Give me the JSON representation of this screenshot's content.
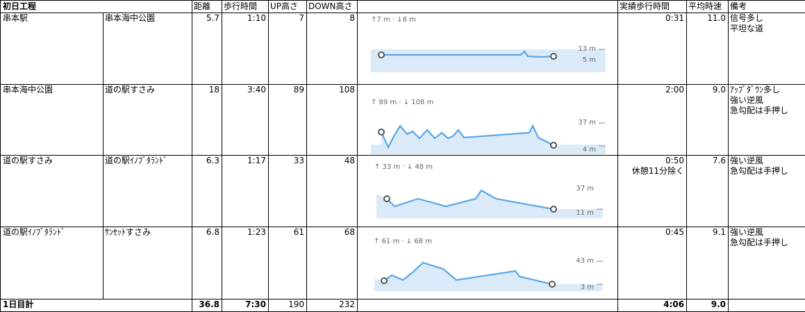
{
  "table": {
    "header": [
      "初日工程",
      "距離",
      "歩行時間",
      "UP高さ",
      "DOWN高さ",
      "実績歩行時間",
      "平均時速",
      "備考"
    ],
    "rows": [
      {
        "from": "串本駅",
        "to": "串本海中公園",
        "distance": "5.7",
        "walk_time": "1:10",
        "up": "7",
        "down": "8",
        "profile": {
          "gain": "↑7 m · ↓8 m",
          "high": "13 m",
          "low": "5 m"
        },
        "actual_time": "0:31",
        "speed": "11.0",
        "remarks": [
          "信号多し",
          "平坦な道"
        ]
      },
      {
        "from": "串本海中公園",
        "to": "道の駅すさみ",
        "distance": "18",
        "walk_time": "3:40",
        "up": "89",
        "down": "108",
        "profile": {
          "gain": "↑ 89 m · ↓ 108 m",
          "high": "37 m",
          "low": "4 m"
        },
        "actual_time": "2:00",
        "speed": "9.0",
        "remarks": [
          "ｱｯﾌﾟﾀﾞｳﾝ多し",
          "強い逆風",
          "急勾配は手押し"
        ]
      },
      {
        "from": "道の駅すさみ",
        "to": "道の駅ｲﾉﾌﾞﾀﾗﾝﾄﾞ",
        "distance": "6.3",
        "walk_time": "1:17",
        "up": "33",
        "down": "48",
        "profile": {
          "gain": "↑ 33 m · ↓ 48 m",
          "high": "37 m",
          "low": "11 m"
        },
        "actual_time": "0:50",
        "actual_note": "休憩11分除く",
        "speed": "7.6",
        "remarks": [
          "強い逆風",
          "急勾配は手押し"
        ]
      },
      {
        "from": "道の駅ｲﾉﾌﾞﾀﾗﾝﾄﾞ",
        "to": "ｻﾝｾｯﾄすさみ",
        "distance": "6.8",
        "walk_time": "1:23",
        "up": "61",
        "down": "68",
        "profile": {
          "gain": "↑ 61 m · ↓ 68 m",
          "high": "43 m",
          "low": "3 m"
        },
        "actual_time": "0:45",
        "speed": "9.1",
        "remarks": [
          "強い逆風",
          "急勾配は手押し"
        ]
      }
    ],
    "total": {
      "label": "1日目計",
      "distance": "36.8",
      "walk_time": "7:30",
      "up": "190",
      "down": "232",
      "actual_time": "4:06",
      "speed": "9.0"
    }
  }
}
